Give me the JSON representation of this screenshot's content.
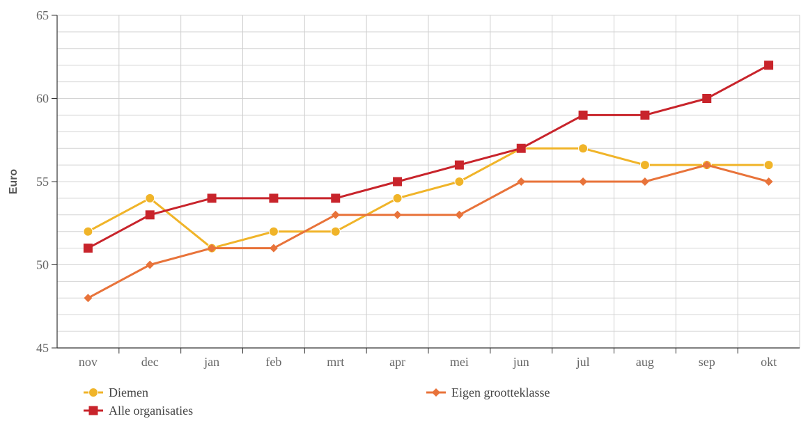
{
  "chart_data": {
    "type": "line",
    "title": "",
    "xlabel": "",
    "ylabel": "Euro",
    "ylim": [
      45,
      65
    ],
    "yticks": [
      45,
      50,
      55,
      60,
      65
    ],
    "grid": true,
    "legend_position": "bottom-left",
    "categories": [
      "nov",
      "dec",
      "jan",
      "feb",
      "mrt",
      "apr",
      "mei",
      "jun",
      "jul",
      "aug",
      "sep",
      "okt"
    ],
    "series": [
      {
        "name": "Diemen",
        "color": "#f0b429",
        "marker": "circle",
        "values": [
          52,
          54,
          51,
          52,
          52,
          54,
          55,
          57,
          57,
          56,
          56,
          56
        ]
      },
      {
        "name": "Eigen grootteklasse",
        "color": "#e8733a",
        "marker": "diamond",
        "values": [
          48,
          50,
          51,
          51,
          53,
          53,
          53,
          55,
          55,
          55,
          56,
          55
        ]
      },
      {
        "name": "Alle organisaties",
        "color": "#c8242b",
        "marker": "square",
        "values": [
          51,
          53,
          54,
          54,
          54,
          55,
          56,
          57,
          59,
          59,
          60,
          62
        ]
      }
    ]
  }
}
